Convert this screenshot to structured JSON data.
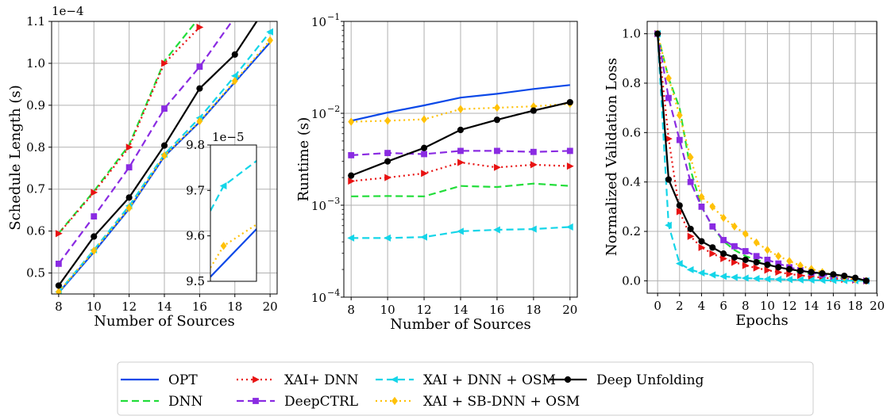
{
  "styles": {
    "OPT": {
      "color": "#0a48e8",
      "dash": "",
      "marker": "none"
    },
    "DNN": {
      "color": "#22dd3a",
      "dash": "9,5",
      "marker": "none"
    },
    "XAI+ DNN": {
      "color": "#e81212",
      "dash": "2,4",
      "marker": "tri-right"
    },
    "DeepCTRL": {
      "color": "#8a2be2",
      "dash": "9,5",
      "marker": "square"
    },
    "XAI + DNN + OSM": {
      "color": "#14d5e8",
      "dash": "9,5",
      "marker": "tri-left"
    },
    "XAI + SB-DNN + OSM": {
      "color": "#ffc107",
      "dash": "2,4",
      "marker": "diamond"
    },
    "Deep Unfolding": {
      "color": "#000000",
      "dash": "",
      "marker": "circle"
    }
  },
  "legend": {
    "placement": "bottom-center",
    "entries": [
      "OPT",
      "DNN",
      "XAI+ DNN",
      "DeepCTRL",
      "XAI + DNN + OSM",
      "XAI + SB-DNN + OSM",
      "Deep Unfolding"
    ]
  },
  "chart_data": [
    {
      "type": "line",
      "xlabel": "Number of Sources",
      "ylabel": "Schedule Length (s)",
      "y_multiplier": "1e−4",
      "xlim": [
        7.6,
        20.4
      ],
      "ylim": [
        0.45,
        1.1
      ],
      "xticks": [
        8,
        10,
        12,
        14,
        16,
        18,
        20
      ],
      "yticks": [
        0.5,
        0.6,
        0.7,
        0.8,
        0.9,
        1.0,
        1.1
      ],
      "ytick_labels": [
        "0.5",
        "0.6",
        "0.7",
        "0.8",
        "0.9",
        "1.0",
        "1.1"
      ],
      "grid": true,
      "series": [
        {
          "name": "OPT",
          "x": [
            8,
            10,
            12,
            14,
            16,
            18,
            20
          ],
          "y": [
            0.453,
            0.55,
            0.653,
            0.778,
            0.86,
            0.955,
            1.05
          ]
        },
        {
          "name": "DNN",
          "x": [
            8,
            10,
            12,
            14,
            16
          ],
          "y": [
            0.595,
            0.695,
            0.805,
            1.005,
            1.11
          ]
        },
        {
          "name": "XAI+ DNN",
          "x": [
            8,
            10,
            12,
            14,
            16
          ],
          "y": [
            0.594,
            0.692,
            0.8,
            1.0,
            1.086
          ]
        },
        {
          "name": "DeepCTRL",
          "x": [
            8,
            10,
            12,
            14,
            16,
            18
          ],
          "y": [
            0.522,
            0.635,
            0.752,
            0.892,
            0.992,
            1.11
          ]
        },
        {
          "name": "XAI + DNN + OSM",
          "x": [
            8,
            10,
            12,
            14,
            16,
            18,
            20
          ],
          "y": [
            0.455,
            0.555,
            0.66,
            0.783,
            0.87,
            0.97,
            1.075
          ]
        },
        {
          "name": "XAI + SB-DNN + OSM",
          "x": [
            8,
            10,
            12,
            14,
            16,
            18,
            20
          ],
          "y": [
            0.455,
            0.553,
            0.655,
            0.78,
            0.862,
            0.958,
            1.055
          ]
        },
        {
          "name": "Deep Unfolding",
          "x": [
            8,
            10,
            12,
            14,
            16,
            18,
            19.4
          ],
          "y": [
            0.47,
            0.587,
            0.68,
            0.804,
            0.94,
            1.021,
            1.11
          ]
        }
      ],
      "inset": {
        "y_multiplier": "1e−5",
        "xlim": [
          17.2,
          20.0
        ],
        "ylim": [
          9.5,
          9.8
        ],
        "yticks": [
          9.5,
          9.6,
          9.7,
          9.8
        ],
        "ytick_labels": [
          "9.5",
          "9.6",
          "9.7",
          "9.8"
        ],
        "series": [
          {
            "name": "OPT",
            "x": [
              17.2,
              20.0
            ],
            "y": [
              9.51,
              9.615
            ]
          },
          {
            "name": "XAI + DNN + OSM",
            "x": [
              17.2,
              18,
              20.0
            ],
            "y": [
              9.655,
              9.71,
              9.765
            ]
          },
          {
            "name": "XAI + SB-DNN + OSM",
            "x": [
              17.2,
              18,
              20.0
            ],
            "y": [
              9.53,
              9.578,
              9.625
            ]
          }
        ]
      }
    },
    {
      "type": "line",
      "xlabel": "Number of Sources",
      "ylabel": "Runtime (s)",
      "scale": "log",
      "xlim": [
        7.6,
        20.4
      ],
      "ylim": [
        0.0001,
        0.1
      ],
      "xticks": [
        8,
        10,
        12,
        14,
        16,
        18,
        20
      ],
      "yticks": [
        0.0001,
        0.001,
        0.01,
        0.1
      ],
      "ytick_labels": [
        "10",
        "10",
        "10",
        "10"
      ],
      "ytick_exponents": [
        "−4",
        "−3",
        "−2",
        "−1"
      ],
      "grid": true,
      "series": [
        {
          "name": "OPT",
          "x": [
            8,
            10,
            12,
            14,
            16,
            18,
            20
          ],
          "y": [
            0.0083,
            0.0102,
            0.0122,
            0.0148,
            0.0163,
            0.0184,
            0.0203
          ]
        },
        {
          "name": "DNN",
          "x": [
            8,
            10,
            12,
            14,
            16,
            18,
            20
          ],
          "y": [
            0.00125,
            0.00126,
            0.00125,
            0.00162,
            0.00158,
            0.00172,
            0.00162
          ]
        },
        {
          "name": "XAI+ DNN",
          "x": [
            8,
            10,
            12,
            14,
            16,
            18,
            20
          ],
          "y": [
            0.00183,
            0.002,
            0.00222,
            0.00292,
            0.00258,
            0.00276,
            0.00266
          ]
        },
        {
          "name": "DeepCTRL",
          "x": [
            8,
            10,
            12,
            14,
            16,
            18,
            20
          ],
          "y": [
            0.0035,
            0.0037,
            0.0036,
            0.0039,
            0.0039,
            0.0038,
            0.0039
          ]
        },
        {
          "name": "XAI + DNN + OSM",
          "x": [
            8,
            10,
            12,
            14,
            16,
            18,
            20
          ],
          "y": [
            0.00044,
            0.00044,
            0.00045,
            0.00052,
            0.00054,
            0.00055,
            0.00058
          ]
        },
        {
          "name": "XAI + SB-DNN + OSM",
          "x": [
            8,
            10,
            12,
            14,
            16,
            18,
            20
          ],
          "y": [
            0.0081,
            0.0083,
            0.0086,
            0.0111,
            0.0115,
            0.0119,
            0.0127
          ]
        },
        {
          "name": "Deep Unfolding",
          "x": [
            8,
            10,
            12,
            14,
            16,
            18,
            20
          ],
          "y": [
            0.0021,
            0.003,
            0.0042,
            0.0066,
            0.0085,
            0.0107,
            0.0132
          ]
        }
      ]
    },
    {
      "type": "line",
      "xlabel": "Epochs",
      "ylabel": "Normalized Validation Loss",
      "xlim": [
        -0.95,
        19.95
      ],
      "ylim": [
        -0.05,
        1.05
      ],
      "xticks": [
        0,
        2,
        4,
        6,
        8,
        10,
        12,
        14,
        16,
        18,
        20
      ],
      "xtick_labels": [
        "0",
        "2",
        "4",
        "6",
        "8",
        "10",
        "12",
        "14",
        "16",
        "18",
        "20"
      ],
      "yticks": [
        0.0,
        0.2,
        0.4,
        0.6,
        0.8,
        1.0
      ],
      "ytick_labels": [
        "0.0",
        "0.2",
        "0.4",
        "0.6",
        "0.8",
        "1.0"
      ],
      "grid": true,
      "series": [
        {
          "name": "OPT",
          "x": [],
          "y": []
        },
        {
          "name": "DNN",
          "x": [
            0,
            1,
            2,
            3,
            4,
            5,
            6,
            7,
            8,
            9,
            10,
            11,
            12,
            13,
            14,
            15,
            16,
            17,
            18,
            19
          ],
          "y": [
            1.0,
            0.82,
            0.7,
            0.45,
            0.3,
            0.22,
            0.16,
            0.125,
            0.1,
            0.085,
            0.07,
            0.055,
            0.045,
            0.035,
            0.028,
            0.022,
            0.016,
            0.01,
            0.005,
            0.0
          ]
        },
        {
          "name": "XAI+ DNN",
          "x": [
            0,
            1,
            2,
            3,
            4,
            5,
            6,
            7,
            8,
            9,
            10,
            11,
            12,
            13,
            14,
            15,
            16,
            17,
            18,
            19
          ],
          "y": [
            1.0,
            0.575,
            0.28,
            0.18,
            0.135,
            0.11,
            0.09,
            0.075,
            0.062,
            0.052,
            0.043,
            0.035,
            0.028,
            0.022,
            0.017,
            0.013,
            0.009,
            0.006,
            0.003,
            0.0
          ]
        },
        {
          "name": "DeepCTRL",
          "x": [
            0,
            1,
            2,
            3,
            4,
            5,
            6,
            7,
            8,
            9,
            10,
            11,
            12,
            13,
            14,
            15,
            16,
            17,
            18,
            19
          ],
          "y": [
            1.0,
            0.74,
            0.57,
            0.4,
            0.3,
            0.22,
            0.165,
            0.14,
            0.12,
            0.1,
            0.085,
            0.07,
            0.055,
            0.043,
            0.033,
            0.025,
            0.018,
            0.011,
            0.005,
            0.0
          ]
        },
        {
          "name": "XAI + DNN + OSM",
          "x": [
            0,
            1,
            2,
            3,
            4,
            5,
            6,
            7,
            8,
            9,
            10,
            11,
            12,
            13,
            14,
            15,
            16,
            17,
            18,
            19
          ],
          "y": [
            1.0,
            0.225,
            0.07,
            0.045,
            0.032,
            0.024,
            0.018,
            0.014,
            0.011,
            0.009,
            0.007,
            0.006,
            0.005,
            0.004,
            0.003,
            0.002,
            0.0015,
            0.001,
            0.0005,
            0.0
          ]
        },
        {
          "name": "XAI + SB-DNN + OSM",
          "x": [
            0,
            1,
            2,
            3,
            4,
            5,
            6,
            7,
            8,
            9,
            10,
            11,
            12,
            13,
            14,
            15,
            16,
            17,
            18,
            19
          ],
          "y": [
            1.0,
            0.82,
            0.67,
            0.5,
            0.34,
            0.3,
            0.255,
            0.22,
            0.19,
            0.155,
            0.125,
            0.1,
            0.08,
            0.062,
            0.048,
            0.035,
            0.024,
            0.015,
            0.007,
            0.0
          ]
        },
        {
          "name": "Deep Unfolding",
          "x": [
            0,
            1,
            2,
            3,
            4,
            5,
            6,
            7,
            8,
            9,
            10,
            11,
            12,
            13,
            14,
            15,
            16,
            17,
            18,
            19
          ],
          "y": [
            1.0,
            0.41,
            0.305,
            0.21,
            0.16,
            0.135,
            0.11,
            0.095,
            0.085,
            0.075,
            0.065,
            0.055,
            0.047,
            0.04,
            0.035,
            0.03,
            0.026,
            0.02,
            0.012,
            0.0
          ]
        }
      ]
    }
  ]
}
